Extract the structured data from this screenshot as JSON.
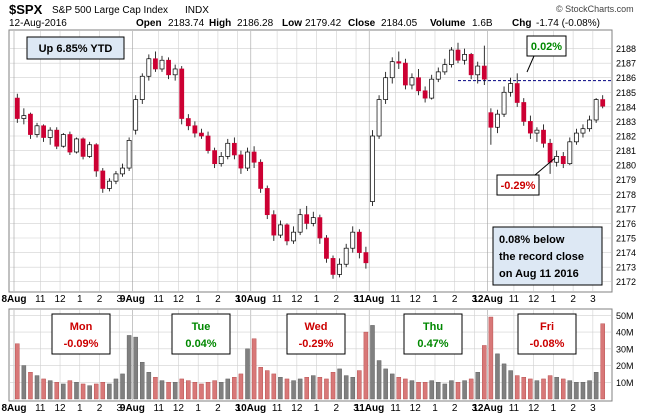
{
  "header": {
    "symbol": "$SPX",
    "name": "S&P 500 Large Cap Index",
    "exchange": "INDX",
    "date": "12-Aug-2016",
    "open_label": "Open",
    "open": "2183.74",
    "high_label": "High",
    "high": "2186.28",
    "low_label": "Low",
    "low": "2179.42",
    "close_label": "Close",
    "close": "2184.05",
    "volume_label": "Volume",
    "volume": "1.6B",
    "chg_label": "Chg",
    "chg": "-1.74 (-0.08%)",
    "source": "© StockCharts.com"
  },
  "annotations": {
    "ytd": "Up 6.85% YTD",
    "record_high_pct": "0.02%",
    "low_pct": "-0.29%",
    "note_lines": [
      "0.08% below",
      "the record close",
      "on Aug 11 2016"
    ]
  },
  "days": [
    {
      "name": "Mon",
      "pct": "-0.09%",
      "color": "#cc0000"
    },
    {
      "name": "Tue",
      "pct": "0.04%",
      "color": "#008800"
    },
    {
      "name": "Wed",
      "pct": "-0.29%",
      "color": "#cc0000"
    },
    {
      "name": "Thu",
      "pct": "0.47%",
      "color": "#008800"
    },
    {
      "name": "Fri",
      "pct": "-0.08%",
      "color": "#cc0000"
    }
  ],
  "colors": {
    "up": "#ffffff",
    "down": "#cc0033",
    "outline": "#000000",
    "vol_up": "#808080",
    "vol_down": "#d87878",
    "grid": "#d0d0d0",
    "record_line": "#000080"
  },
  "chart_data": {
    "type": "candlestick",
    "y_ticks": [
      2172,
      2173,
      2174,
      2175,
      2176,
      2177,
      2178,
      2179,
      2180,
      2181,
      2182,
      2183,
      2184,
      2185,
      2186,
      2187,
      2188
    ],
    "ylim": [
      2171.5,
      2189
    ],
    "record_close_line": 2185.8,
    "x_tick_labels": [
      "8Aug",
      "11",
      "12",
      "1",
      "2",
      "3",
      "9Aug",
      "11",
      "12",
      "1",
      "2",
      "3",
      "10Aug",
      "11",
      "12",
      "1",
      "2",
      "3",
      "11Aug",
      "11",
      "12",
      "1",
      "2",
      "3",
      "12Aug",
      "11",
      "12",
      "1",
      "2",
      "3"
    ],
    "x_tick_index": [
      0,
      4,
      7,
      10,
      13,
      16,
      18,
      22,
      25,
      28,
      31,
      34,
      36,
      40,
      43,
      46,
      49,
      52,
      54,
      58,
      61,
      64,
      67,
      70,
      72,
      76,
      79,
      82,
      85,
      88
    ],
    "volume_ticks": [
      "10M",
      "20M",
      "30M",
      "40M",
      "50M"
    ],
    "volume_tick_values": [
      10,
      20,
      30,
      40,
      50
    ],
    "volume_max": 52,
    "candles": [
      [
        2184.6,
        2184.9,
        2182.9,
        2183.2
      ],
      [
        2183.2,
        2183.9,
        2182.8,
        2183.4
      ],
      [
        2183.5,
        2183.6,
        2181.8,
        2182.1
      ],
      [
        2182.1,
        2182.9,
        2181.9,
        2182.7
      ],
      [
        2182.7,
        2182.8,
        2181.6,
        2181.9
      ],
      [
        2181.9,
        2182.6,
        2181.4,
        2182.4
      ],
      [
        2182.4,
        2182.6,
        2181.1,
        2181.3
      ],
      [
        2181.3,
        2182.2,
        2181.2,
        2182.1
      ],
      [
        2182.1,
        2182.3,
        2180.7,
        2180.9
      ],
      [
        2180.9,
        2181.9,
        2180.8,
        2181.8
      ],
      [
        2181.8,
        2181.9,
        2180.4,
        2180.6
      ],
      [
        2180.6,
        2181.6,
        2180.5,
        2181.4
      ],
      [
        2181.4,
        2181.5,
        2179.2,
        2179.6
      ],
      [
        2179.6,
        2179.8,
        2178.1,
        2178.4
      ],
      [
        2178.4,
        2179.1,
        2178.2,
        2178.9
      ],
      [
        2178.9,
        2179.6,
        2178.7,
        2179.4
      ],
      [
        2179.4,
        2180.1,
        2179.2,
        2179.8
      ],
      [
        2179.8,
        2181.9,
        2179.6,
        2181.7
      ],
      [
        2182.4,
        2184.8,
        2182.1,
        2184.5
      ],
      [
        2184.5,
        2186.3,
        2184.2,
        2186.1
      ],
      [
        2186.1,
        2187.6,
        2185.8,
        2187.3
      ],
      [
        2187.3,
        2187.8,
        2186.4,
        2186.6
      ],
      [
        2186.6,
        2187.5,
        2186.4,
        2187.2
      ],
      [
        2187.2,
        2187.4,
        2185.9,
        2186.2
      ],
      [
        2186.2,
        2186.9,
        2185.8,
        2186.6
      ],
      [
        2186.6,
        2186.8,
        2182.8,
        2183.2
      ],
      [
        2183.2,
        2183.5,
        2182.4,
        2182.7
      ],
      [
        2182.7,
        2183.0,
        2181.9,
        2182.2
      ],
      [
        2182.2,
        2182.5,
        2181.8,
        2182.0
      ],
      [
        2182.0,
        2182.3,
        2180.8,
        2181.0
      ],
      [
        2181.0,
        2181.2,
        2179.8,
        2180.1
      ],
      [
        2180.1,
        2180.9,
        2179.9,
        2180.6
      ],
      [
        2180.6,
        2181.8,
        2180.4,
        2181.5
      ],
      [
        2181.5,
        2181.9,
        2180.4,
        2180.7
      ],
      [
        2180.7,
        2181.0,
        2179.4,
        2179.8
      ],
      [
        2179.8,
        2181.2,
        2179.6,
        2180.9
      ],
      [
        2180.9,
        2181.3,
        2179.8,
        2180.2
      ],
      [
        2180.2,
        2180.4,
        2178.1,
        2178.4
      ],
      [
        2178.4,
        2178.6,
        2176.3,
        2176.6
      ],
      [
        2176.6,
        2176.9,
        2174.8,
        2175.2
      ],
      [
        2175.2,
        2176.2,
        2175.0,
        2175.9
      ],
      [
        2175.9,
        2176.0,
        2174.5,
        2174.8
      ],
      [
        2174.8,
        2175.8,
        2174.6,
        2175.4
      ],
      [
        2175.4,
        2177.0,
        2175.2,
        2176.6
      ],
      [
        2176.6,
        2177.2,
        2175.6,
        2176.0
      ],
      [
        2176.0,
        2176.8,
        2175.8,
        2176.4
      ],
      [
        2176.4,
        2176.6,
        2174.6,
        2175.0
      ],
      [
        2175.0,
        2175.2,
        2173.3,
        2173.6
      ],
      [
        2173.6,
        2173.8,
        2172.2,
        2172.5
      ],
      [
        2172.5,
        2173.6,
        2172.3,
        2173.2
      ],
      [
        2173.2,
        2174.6,
        2173.0,
        2174.3
      ],
      [
        2174.3,
        2175.8,
        2174.0,
        2175.4
      ],
      [
        2175.4,
        2175.6,
        2173.6,
        2174.0
      ],
      [
        2174.0,
        2174.4,
        2172.9,
        2173.3
      ],
      [
        2177.5,
        2182.4,
        2177.2,
        2182.0
      ],
      [
        2182.0,
        2184.8,
        2181.8,
        2184.5
      ],
      [
        2184.5,
        2186.4,
        2184.2,
        2186.0
      ],
      [
        2186.0,
        2187.4,
        2185.6,
        2187.1
      ],
      [
        2187.1,
        2187.8,
        2186.6,
        2187.0
      ],
      [
        2187.0,
        2187.3,
        2185.2,
        2185.5
      ],
      [
        2185.5,
        2186.3,
        2185.2,
        2186.0
      ],
      [
        2186.0,
        2186.6,
        2184.8,
        2185.1
      ],
      [
        2185.1,
        2185.4,
        2184.3,
        2184.6
      ],
      [
        2184.6,
        2186.2,
        2184.5,
        2185.9
      ],
      [
        2185.9,
        2186.7,
        2185.7,
        2186.4
      ],
      [
        2186.4,
        2187.3,
        2186.2,
        2186.9
      ],
      [
        2186.9,
        2188.1,
        2186.7,
        2187.9
      ],
      [
        2187.9,
        2188.4,
        2187.0,
        2187.2
      ],
      [
        2187.2,
        2188.0,
        2186.9,
        2187.6
      ],
      [
        2187.6,
        2187.7,
        2185.9,
        2186.2
      ],
      [
        2186.2,
        2187.1,
        2185.6,
        2186.8
      ],
      [
        2186.8,
        2188.2,
        2185.5,
        2185.9
      ],
      [
        2183.6,
        2183.9,
        2181.4,
        2182.6
      ],
      [
        2182.6,
        2183.8,
        2182.2,
        2183.5
      ],
      [
        2183.5,
        2185.4,
        2183.3,
        2185.0
      ],
      [
        2185.0,
        2186.0,
        2184.7,
        2185.6
      ],
      [
        2185.6,
        2186.3,
        2184.0,
        2184.3
      ],
      [
        2184.3,
        2184.6,
        2182.7,
        2183.0
      ],
      [
        2183.0,
        2183.4,
        2181.8,
        2182.2
      ],
      [
        2182.2,
        2182.6,
        2181.6,
        2182.4
      ],
      [
        2182.4,
        2182.8,
        2181.2,
        2181.5
      ],
      [
        2181.5,
        2181.8,
        2179.4,
        2180.2
      ],
      [
        2180.2,
        2181.0,
        2179.9,
        2180.6
      ],
      [
        2180.6,
        2180.9,
        2179.8,
        2180.1
      ],
      [
        2180.1,
        2181.9,
        2180.0,
        2181.6
      ],
      [
        2181.6,
        2182.5,
        2181.4,
        2182.2
      ],
      [
        2182.2,
        2182.8,
        2181.9,
        2182.5
      ],
      [
        2182.5,
        2183.4,
        2182.3,
        2183.1
      ],
      [
        2183.1,
        2184.6,
        2182.9,
        2184.5
      ],
      [
        2184.5,
        2184.8,
        2183.9,
        2184.05
      ]
    ],
    "volumes": [
      33,
      20,
      16,
      14,
      12,
      11,
      10,
      9,
      11,
      10,
      9,
      8,
      9,
      10,
      9,
      12,
      15,
      38,
      37,
      22,
      16,
      13,
      11,
      10,
      10,
      12,
      11,
      10,
      9,
      10,
      11,
      10,
      12,
      13,
      15,
      30,
      36,
      19,
      17,
      15,
      13,
      12,
      11,
      12,
      13,
      14,
      13,
      12,
      16,
      18,
      14,
      13,
      17,
      40,
      44,
      23,
      18,
      15,
      13,
      12,
      11,
      10,
      10,
      11,
      10,
      9,
      11,
      10,
      11,
      12,
      16,
      32,
      49,
      27,
      21,
      17,
      14,
      13,
      12,
      11,
      12,
      14,
      13,
      12,
      11,
      10,
      10,
      11,
      16,
      45
    ]
  }
}
